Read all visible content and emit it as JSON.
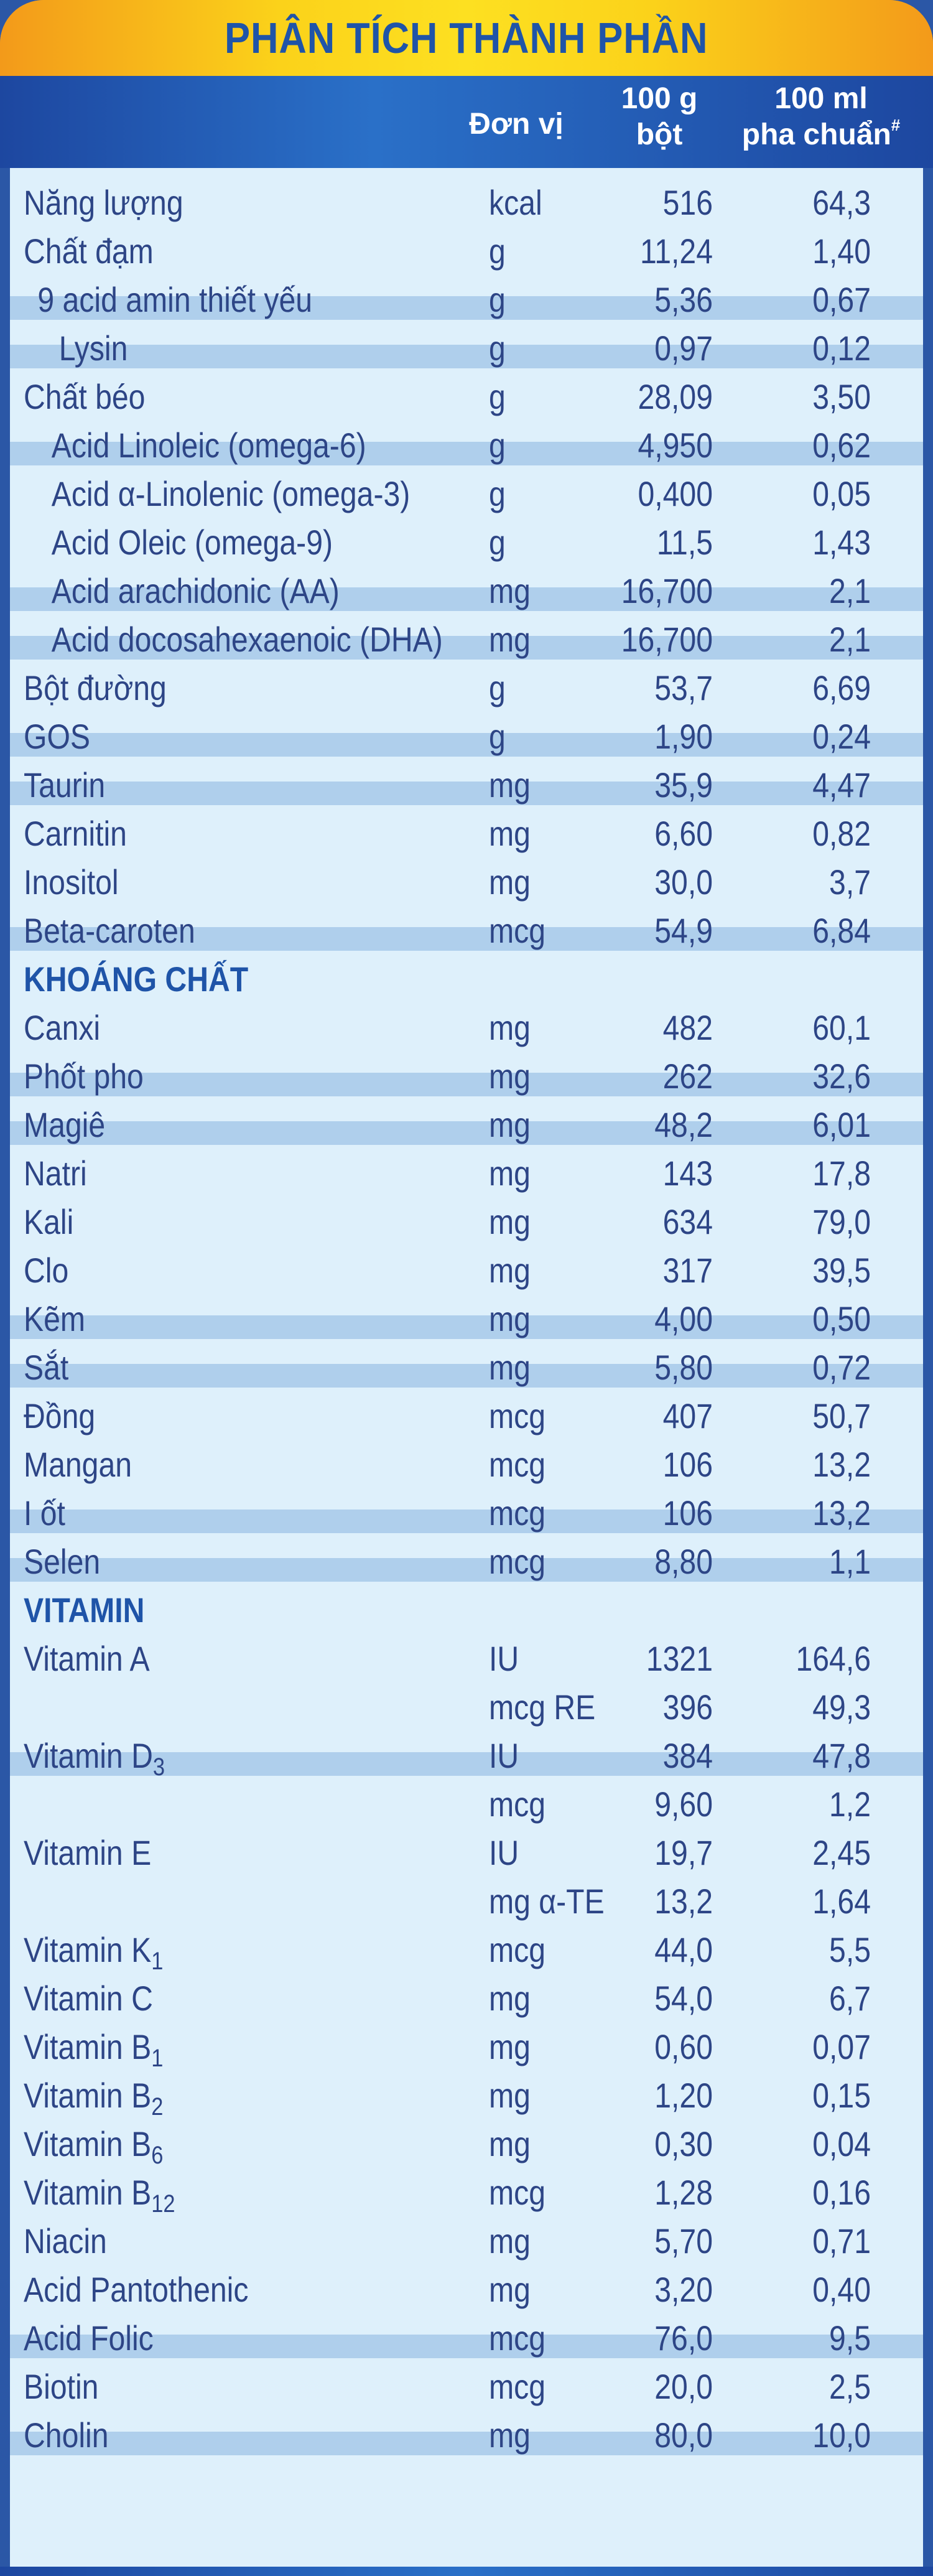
{
  "title": "PHÂN TÍCH THÀNH PHẦN",
  "header": {
    "unit": "Đơn vị",
    "powder_line1": "100 g",
    "powder_line2": "bột",
    "ml_line1": "100 ml",
    "ml_line2": "pha chuẩn",
    "ml_mark": "#"
  },
  "colors": {
    "title_band": "#fbd21a",
    "title_text": "#1f54a8",
    "header_bg": "#1d47a0",
    "body_bg": "#def0fb",
    "row_shade": "#afcfec",
    "text": "#2d4586"
  },
  "rows": [
    {
      "name": "Năng lượng",
      "unit": "kcal",
      "powder": "516",
      "ml": "64,3",
      "shade": false,
      "indent": 0
    },
    {
      "name": "Chất đạm",
      "unit": "g",
      "powder": "11,24",
      "ml": "1,40",
      "shade": false,
      "indent": 0
    },
    {
      "name": "9 acid amin thiết yếu",
      "unit": "g",
      "powder": "5,36",
      "ml": "0,67",
      "shade": true,
      "indent": 1
    },
    {
      "name": "Lysin",
      "unit": "g",
      "powder": "0,97",
      "ml": "0,12",
      "shade": true,
      "indent": 2
    },
    {
      "name": "Chất béo",
      "unit": "g",
      "powder": "28,09",
      "ml": "3,50",
      "shade": false,
      "indent": 0
    },
    {
      "name": "Acid Linoleic (omega-6)",
      "unit": "g",
      "powder": "4,950",
      "ml": "0,62",
      "shade": true,
      "indent": 3
    },
    {
      "name": "Acid α-Linolenic (omega-3)",
      "unit": "g",
      "powder": "0,400",
      "ml": "0,05",
      "shade": false,
      "indent": 3
    },
    {
      "name": "Acid Oleic (omega-9)",
      "unit": "g",
      "powder": "11,5",
      "ml": "1,43",
      "shade": false,
      "indent": 3
    },
    {
      "name": "Acid arachidonic (AA)",
      "unit": "mg",
      "powder": "16,700",
      "ml": "2,1",
      "shade": true,
      "indent": 3
    },
    {
      "name": "Acid docosahexaenoic (DHA)",
      "unit": "mg",
      "powder": "16,700",
      "ml": "2,1",
      "shade": true,
      "indent": 3
    },
    {
      "name": "Bột đường",
      "unit": "g",
      "powder": "53,7",
      "ml": "6,69",
      "shade": false,
      "indent": 0
    },
    {
      "name": "GOS",
      "unit": "g",
      "powder": "1,90",
      "ml": "0,24",
      "shade": true,
      "indent": 0
    },
    {
      "name": "Taurin",
      "unit": "mg",
      "powder": "35,9",
      "ml": "4,47",
      "shade": true,
      "indent": 0
    },
    {
      "name": "Carnitin",
      "unit": "mg",
      "powder": "6,60",
      "ml": "0,82",
      "shade": false,
      "indent": 0
    },
    {
      "name": "Inositol",
      "unit": "mg",
      "powder": "30,0",
      "ml": "3,7",
      "shade": false,
      "indent": 0
    },
    {
      "name": "Beta-caroten",
      "unit": "mcg",
      "powder": "54,9",
      "ml": "6,84",
      "shade": true,
      "indent": 0
    },
    {
      "name": "KHOÁNG CHẤT",
      "unit": "",
      "powder": "",
      "ml": "",
      "shade": false,
      "indent": 0,
      "section": true
    },
    {
      "name": "Canxi",
      "unit": "mg",
      "powder": "482",
      "ml": "60,1",
      "shade": false,
      "indent": 0
    },
    {
      "name": "Phốt pho",
      "unit": "mg",
      "powder": "262",
      "ml": "32,6",
      "shade": true,
      "indent": 0
    },
    {
      "name": "Magiê",
      "unit": "mg",
      "powder": "48,2",
      "ml": "6,01",
      "shade": true,
      "indent": 0
    },
    {
      "name": "Natri",
      "unit": "mg",
      "powder": "143",
      "ml": "17,8",
      "shade": false,
      "indent": 0
    },
    {
      "name": "Kali",
      "unit": "mg",
      "powder": "634",
      "ml": "79,0",
      "shade": false,
      "indent": 0
    },
    {
      "name": "Clo",
      "unit": "mg",
      "powder": "317",
      "ml": "39,5",
      "shade": false,
      "indent": 0
    },
    {
      "name": "Kẽm",
      "unit": "mg",
      "powder": "4,00",
      "ml": "0,50",
      "shade": true,
      "indent": 0
    },
    {
      "name": "Sắt",
      "unit": "mg",
      "powder": "5,80",
      "ml": "0,72",
      "shade": true,
      "indent": 0
    },
    {
      "name": "Đồng",
      "unit": "mcg",
      "powder": "407",
      "ml": "50,7",
      "shade": false,
      "indent": 0
    },
    {
      "name": "Mangan",
      "unit": "mcg",
      "powder": "106",
      "ml": "13,2",
      "shade": false,
      "indent": 0
    },
    {
      "name": "I ốt",
      "unit": "mcg",
      "powder": "106",
      "ml": "13,2",
      "shade": true,
      "indent": 0
    },
    {
      "name": "Selen",
      "unit": "mcg",
      "powder": "8,80",
      "ml": "1,1",
      "shade": true,
      "indent": 0
    },
    {
      "name": "VITAMIN",
      "unit": "",
      "powder": "",
      "ml": "",
      "shade": false,
      "indent": 0,
      "section": true
    },
    {
      "name": "Vitamin A",
      "unit": "IU",
      "powder": "1321",
      "ml": "164,6",
      "shade": false,
      "indent": 0
    },
    {
      "name": "",
      "unit": "mcg RE",
      "powder": "396",
      "ml": "49,3",
      "shade": false,
      "indent": 0
    },
    {
      "name": "Vitamin D",
      "sub": "3",
      "unit": "IU",
      "powder": "384",
      "ml": "47,8",
      "shade": true,
      "indent": 0
    },
    {
      "name": "",
      "unit": "mcg",
      "powder": "9,60",
      "ml": "1,2",
      "shade": false,
      "indent": 0
    },
    {
      "name": "Vitamin E",
      "unit": "IU",
      "powder": "19,7",
      "ml": "2,45",
      "shade": false,
      "indent": 0
    },
    {
      "name": "",
      "unit": "mg α-TE",
      "powder": "13,2",
      "ml": "1,64",
      "shade": false,
      "indent": 0
    },
    {
      "name": "Vitamin K",
      "sub": "1",
      "unit": "mcg",
      "powder": "44,0",
      "ml": "5,5",
      "shade": false,
      "indent": 0
    },
    {
      "name": "Vitamin C",
      "unit": "mg",
      "powder": "54,0",
      "ml": "6,7",
      "shade": false,
      "indent": 0
    },
    {
      "name": "Vitamin B",
      "sub": "1",
      "unit": "mg",
      "powder": "0,60",
      "ml": "0,07",
      "shade": false,
      "indent": 0
    },
    {
      "name": "Vitamin B",
      "sub": "2",
      "unit": "mg",
      "powder": "1,20",
      "ml": "0,15",
      "shade": false,
      "indent": 0
    },
    {
      "name": "Vitamin B",
      "sub": "6",
      "unit": "mg",
      "powder": "0,30",
      "ml": "0,04",
      "shade": false,
      "indent": 0
    },
    {
      "name": "Vitamin B",
      "sub": "12",
      "unit": "mcg",
      "powder": "1,28",
      "ml": "0,16",
      "shade": false,
      "indent": 0
    },
    {
      "name": "Niacin",
      "unit": "mg",
      "powder": "5,70",
      "ml": "0,71",
      "shade": false,
      "indent": 0
    },
    {
      "name": "Acid Pantothenic",
      "unit": "mg",
      "powder": "3,20",
      "ml": "0,40",
      "shade": false,
      "indent": 0
    },
    {
      "name": "Acid Folic",
      "unit": "mcg",
      "powder": "76,0",
      "ml": "9,5",
      "shade": true,
      "indent": 0
    },
    {
      "name": "Biotin",
      "unit": "mcg",
      "powder": "20,0",
      "ml": "2,5",
      "shade": false,
      "indent": 0
    },
    {
      "name": "Cholin",
      "unit": "mg",
      "powder": "80,0",
      "ml": "10,0",
      "shade": true,
      "indent": 0
    }
  ]
}
